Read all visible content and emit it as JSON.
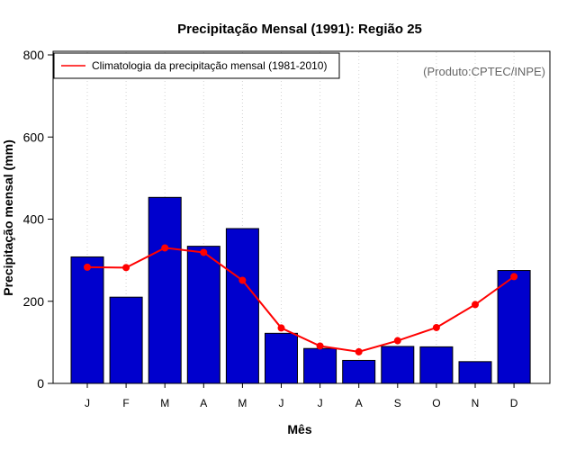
{
  "chart_data": {
    "type": "bar",
    "title": "Precipitação Mensal (1991): Região 25",
    "xlabel": "Mês",
    "ylabel": "Precipitação mensal (mm)",
    "ylim": [
      0,
      800
    ],
    "yticks": [
      0,
      200,
      400,
      600,
      800
    ],
    "categories": [
      "J",
      "F",
      "M",
      "A",
      "M",
      "J",
      "J",
      "A",
      "S",
      "O",
      "N",
      "D"
    ],
    "series": [
      {
        "name": "Precipitação mensal (1991)",
        "kind": "bar",
        "color": "#0000CD",
        "values": [
          308,
          210,
          453,
          334,
          377,
          122,
          85,
          56,
          90,
          89,
          53,
          275
        ]
      },
      {
        "name": "Climatologia da precipitação mensal (1981-2010)",
        "kind": "line",
        "color": "#FF0000",
        "values": [
          283,
          282,
          330,
          319,
          251,
          135,
          91,
          77,
          104,
          136,
          192,
          260
        ]
      }
    ],
    "legend": {
      "position": "top-left",
      "entries": [
        "Climatologia da precipitação mensal (1981-2010)"
      ]
    },
    "annotation": "(Produto:CPTEC/INPE)",
    "grid": "vertical dotted"
  }
}
